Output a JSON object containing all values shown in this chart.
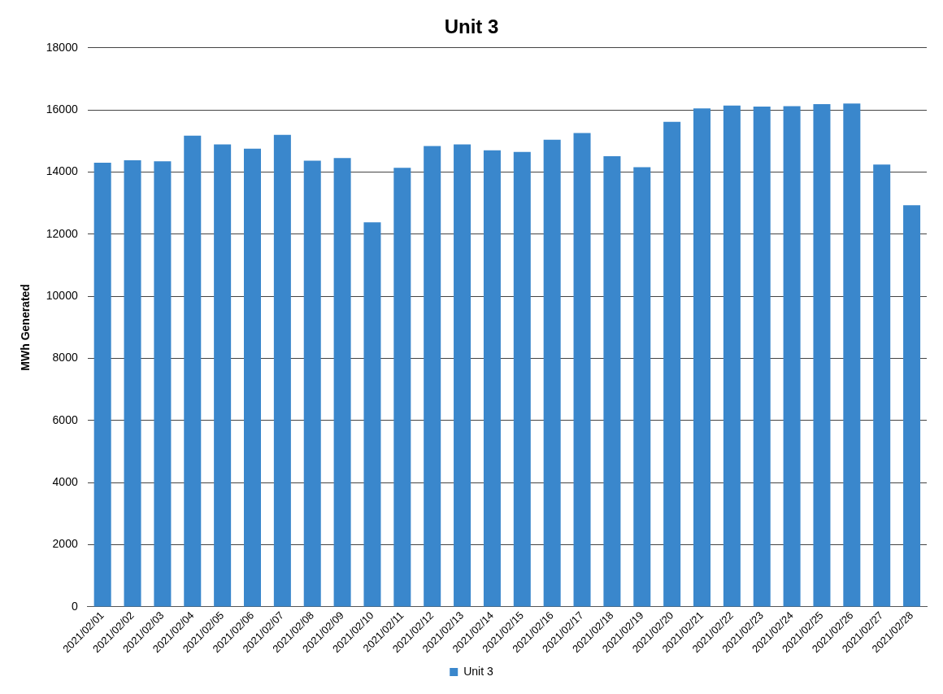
{
  "chart_data": {
    "type": "bar",
    "title": "Unit 3",
    "ylabel": "MWh Generated",
    "categories": [
      "2021/02/01",
      "2021/02/02",
      "2021/02/03",
      "2021/02/04",
      "2021/02/05",
      "2021/02/06",
      "2021/02/07",
      "2021/02/08",
      "2021/02/09",
      "2021/02/10",
      "2021/02/11",
      "2021/02/12",
      "2021/02/13",
      "2021/02/14",
      "2021/02/15",
      "2021/02/16",
      "2021/02/17",
      "2021/02/18",
      "2021/02/19",
      "2021/02/20",
      "2021/02/21",
      "2021/02/22",
      "2021/02/23",
      "2021/02/24",
      "2021/02/25",
      "2021/02/26",
      "2021/02/27",
      "2021/02/28"
    ],
    "series": [
      {
        "name": "Unit 3",
        "color": "#3a87cc",
        "values": [
          14300,
          14380,
          14350,
          15170,
          14890,
          14750,
          15200,
          14370,
          14450,
          12380,
          14140,
          14840,
          14890,
          14700,
          14650,
          15040,
          15260,
          14510,
          14160,
          15620,
          16050,
          16140,
          16110,
          16120,
          16190,
          16210,
          14240,
          12930
        ]
      }
    ],
    "ylim": [
      0,
      18000
    ],
    "yticks": [
      0,
      2000,
      4000,
      6000,
      8000,
      10000,
      12000,
      14000,
      16000,
      18000
    ],
    "grid": "y",
    "legend": "bottom"
  }
}
